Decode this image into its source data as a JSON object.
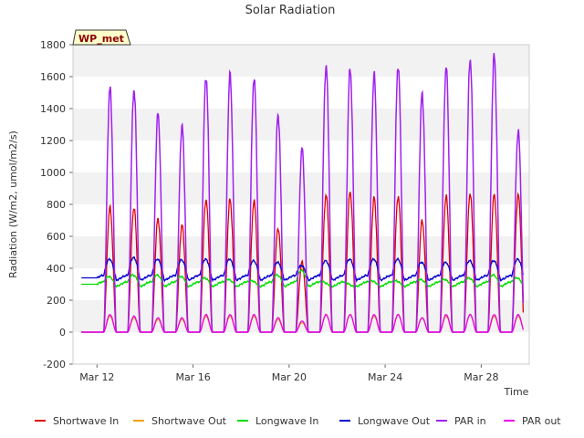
{
  "chart_data": {
    "type": "line",
    "title": "Solar Radiation",
    "xlabel": "Time",
    "ylabel": "Radiation (W/m2, umol/m2/s)",
    "badge": "WP_met",
    "ylim": [
      -200,
      1800
    ],
    "yticks": [
      -200,
      0,
      200,
      400,
      600,
      800,
      1000,
      1200,
      1400,
      1600,
      1800
    ],
    "x_start": "Mar 11",
    "x_end": "Mar 30",
    "xticks": [
      {
        "label": "Mar 12",
        "day": 12
      },
      {
        "label": "Mar 16",
        "day": 16
      },
      {
        "label": "Mar 20",
        "day": 20
      },
      {
        "label": "Mar 24",
        "day": 24
      },
      {
        "label": "Mar 28",
        "day": 28
      }
    ],
    "grid": true,
    "legend_position": "bottom",
    "days": [
      "Mar 12",
      "Mar 13",
      "Mar 14",
      "Mar 15",
      "Mar 16",
      "Mar 17",
      "Mar 18",
      "Mar 19",
      "Mar 20",
      "Mar 21",
      "Mar 22",
      "Mar 23",
      "Mar 24",
      "Mar 25",
      "Mar 26",
      "Mar 27",
      "Mar 28",
      "Mar 29"
    ],
    "series": [
      {
        "name": "Shortwave In",
        "color": "#dd0000",
        "daily_peak": [
          780,
          780,
          710,
          670,
          830,
          830,
          820,
          650,
          440,
          860,
          880,
          840,
          850,
          700,
          850,
          870,
          860,
          860
        ],
        "night_value": 0
      },
      {
        "name": "Shortwave Out",
        "color": "#f0a000",
        "daily_peak": [
          100,
          90,
          80,
          80,
          100,
          100,
          100,
          80,
          60,
          110,
          110,
          100,
          110,
          90,
          100,
          110,
          100,
          100
        ],
        "night_value": 0
      },
      {
        "name": "Longwave In",
        "color": "#00dd00",
        "daily_peak": [
          350,
          360,
          360,
          350,
          340,
          330,
          320,
          360,
          390,
          310,
          300,
          320,
          320,
          330,
          330,
          340,
          360,
          340
        ],
        "night_value": 300
      },
      {
        "name": "Longwave Out",
        "color": "#0000cc",
        "daily_peak": [
          460,
          470,
          460,
          455,
          460,
          460,
          450,
          440,
          420,
          450,
          460,
          460,
          460,
          440,
          440,
          450,
          450,
          460
        ],
        "night_value": 340
      },
      {
        "name": "PAR in",
        "color": "#a020f0",
        "daily_peak": [
          1530,
          1520,
          1370,
          1290,
          1600,
          1610,
          1590,
          1360,
          1150,
          1670,
          1650,
          1610,
          1670,
          1490,
          1660,
          1710,
          1730,
          1260
        ],
        "night_value": 0
      },
      {
        "name": "PAR out",
        "color": "#ee00ee",
        "daily_peak": [
          110,
          100,
          90,
          90,
          110,
          110,
          110,
          90,
          70,
          110,
          110,
          110,
          110,
          90,
          110,
          110,
          110,
          110
        ],
        "night_value": 0
      }
    ]
  }
}
